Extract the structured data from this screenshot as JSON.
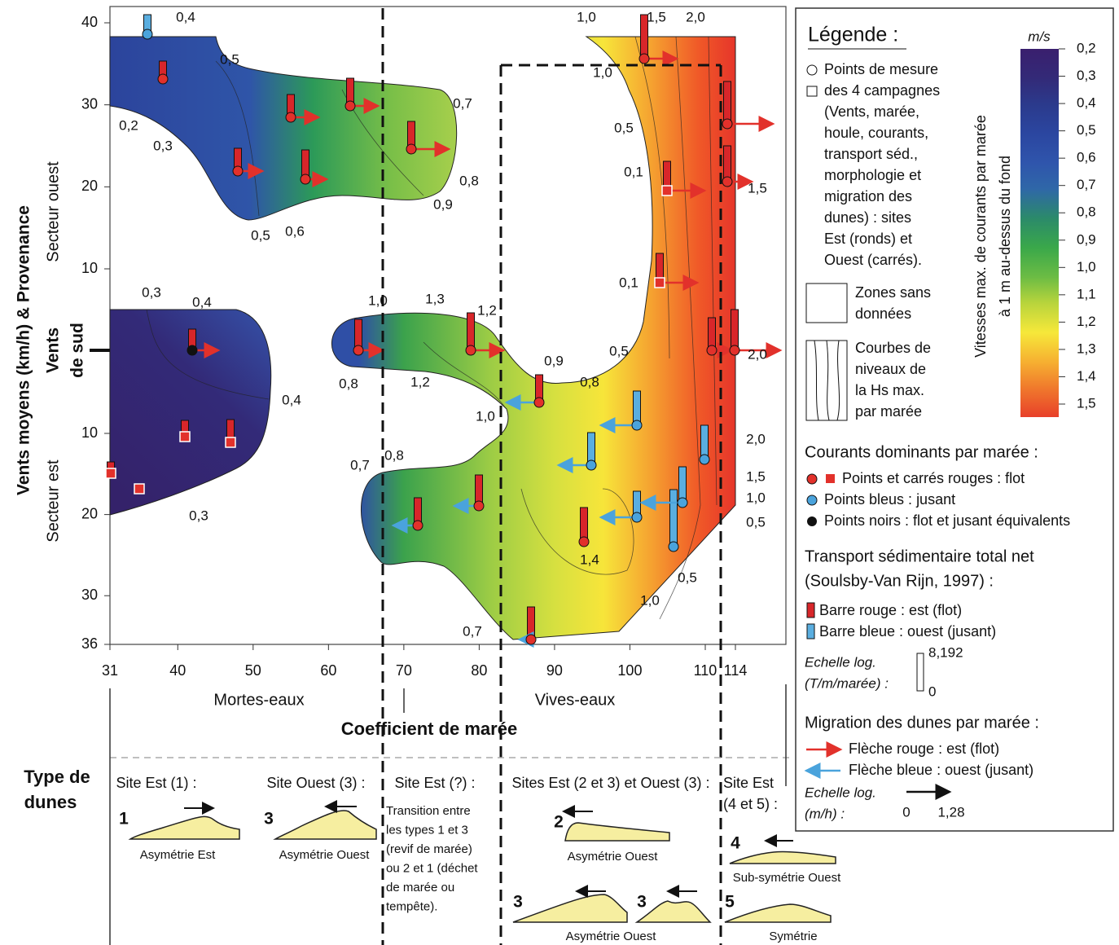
{
  "plot": {
    "x_title": "Coefficient de marée",
    "x_ticks": [
      31,
      40,
      50,
      60,
      70,
      80,
      90,
      100,
      110,
      114
    ],
    "zones": [
      "Mortes-eaux",
      "Vives-eaux"
    ],
    "y_title": "Vents moyens (km/h) & Provenance",
    "south": [
      "Vents",
      "de sud"
    ],
    "sector_west": "Secteur ouest",
    "sector_east": "Secteur est",
    "y_ticks_west": [
      40,
      30,
      20,
      10
    ],
    "y_ticks_east": [
      10,
      20,
      30,
      36
    ],
    "contour_labels": [
      "0,4",
      "0,5",
      "0,2",
      "0,3",
      "0,7",
      "0,8",
      "0,9",
      "0,5",
      "0,6",
      "1,0",
      "1,5",
      "2,0",
      "1,0",
      "0,5",
      "0,1",
      "1,5",
      "0,1",
      "0,5",
      "2,0",
      "0,3",
      "0,4",
      "0,4",
      "0,3",
      "1,0",
      "1,3",
      "1,2",
      "0,8",
      "1,2",
      "0,9",
      "0,8",
      "1,0",
      "0,7",
      "0,8",
      "1,4",
      "0,5",
      "1,0",
      "0,7",
      "2,0",
      "1,5",
      "1,0",
      "0,5"
    ]
  },
  "legend": {
    "title": "Légende :",
    "unit": "m/s",
    "points": [
      "Points de mesure",
      "des 4 campagnes",
      "(Vents, marée,",
      "houle, courants,",
      "transport séd.,",
      "morphologie et",
      "migration des",
      "dunes) : sites",
      "Est (ronds) et",
      "Ouest (carrés)."
    ],
    "no_data": [
      "Zones sans",
      "données"
    ],
    "contours": [
      "Courbes de",
      "niveaux de",
      "la Hs max.",
      "par marée"
    ],
    "colorbar_title": [
      "Vitesses max. de courants par marée",
      "à 1 m au-dessus du fond"
    ],
    "colorbar_ticks": [
      "0,2",
      "0,3",
      "0,4",
      "0,5",
      "0,6",
      "0,7",
      "0,8",
      "0,9",
      "1,0",
      "1,1",
      "1,2",
      "1,3",
      "1,4",
      "1,5"
    ],
    "currents_title": "Courants dominants par marée :",
    "currents": [
      "Points et carrés rouges : flot",
      "Points bleus : jusant",
      "Points noirs : flot et jusant équivalents"
    ],
    "transport_title": [
      "Transport sédimentaire total net",
      "(Soulsby-Van Rijn, 1997) :"
    ],
    "transport": [
      "Barre rouge : est (flot)",
      "Barre bleue : ouest (jusant)"
    ],
    "transport_scale": [
      "Echelle log.",
      "(T/m/marée) :",
      "8,192",
      "0"
    ],
    "migration_title": "Migration des dunes par marée :",
    "migration": [
      "Flèche rouge : est (flot)",
      "Flèche bleue : ouest (jusant)"
    ],
    "migration_scale": [
      "Echelle log.",
      "(m/h) :",
      "0",
      "1,28"
    ]
  },
  "dunes": {
    "title": [
      "Type de",
      "dunes"
    ],
    "sites": [
      "Site Est (1) :",
      "Site Ouest (3) :",
      "Site Est (?) :",
      "Sites Est (2 et 3) et Ouest (3) :",
      "Site Est",
      "(4 et 5) :"
    ],
    "transition": [
      "Transition entre",
      "les types 1 et 3",
      "(revif de marée)",
      "ou 2 et 1 (déchet",
      "de marée ou",
      "tempête)."
    ],
    "numbers": [
      "1",
      "3",
      "2",
      "3",
      "3",
      "4",
      "5"
    ],
    "captions": [
      "Asymétrie Est",
      "Asymétrie Ouest",
      "Asymétrie Ouest",
      "Sub-symétrie Ouest",
      "Asymétrie Ouest",
      "Symétrie"
    ]
  }
}
